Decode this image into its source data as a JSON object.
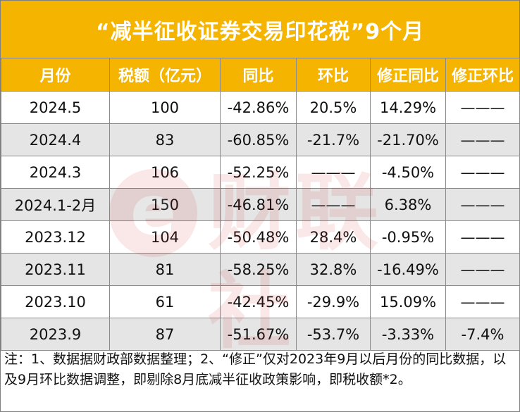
{
  "title": "“减半征收证券交易印花税”9个月",
  "headers": [
    "月份",
    "税额（亿元）",
    "同比",
    "环比",
    "修正同比",
    "修正环比"
  ],
  "rows": [
    [
      "2024.5",
      "100",
      "-42.86%",
      "20.5%",
      "14.29%",
      "———"
    ],
    [
      "2024.4",
      "83",
      "-60.85%",
      "-21.7%",
      "-21.70%",
      "———"
    ],
    [
      "2024.3",
      "106",
      "-52.25%",
      "———",
      "-4.50%",
      "———"
    ],
    [
      "2024.1-2月",
      "150",
      "-46.81%",
      "———",
      "6.38%",
      "———"
    ],
    [
      "2023.12",
      "104",
      "-50.48%",
      "28.4%",
      "-0.95%",
      "———"
    ],
    [
      "2023.11",
      "81",
      "-58.25%",
      "32.8%",
      "-16.49%",
      "———"
    ],
    [
      "2023.10",
      "61",
      "-42.45%",
      "-29.9%",
      "15.09%",
      "———"
    ],
    [
      "2023.9",
      "87",
      "-51.67%",
      "-53.7%",
      "-3.33%",
      "-7.4%"
    ]
  ],
  "note": "注：1、数据据财政部数据整理；2、“修正”仅对2023年9月以后月份的同比数据，以及9月环比数据调整，即剔除8月底减半征收政策影响，即税收额*2。",
  "watermark": {
    "icon": "e-logo-icon",
    "text": "财联社"
  },
  "colors": {
    "header": "#f5b400",
    "alt_row": "#e5e5e5"
  }
}
